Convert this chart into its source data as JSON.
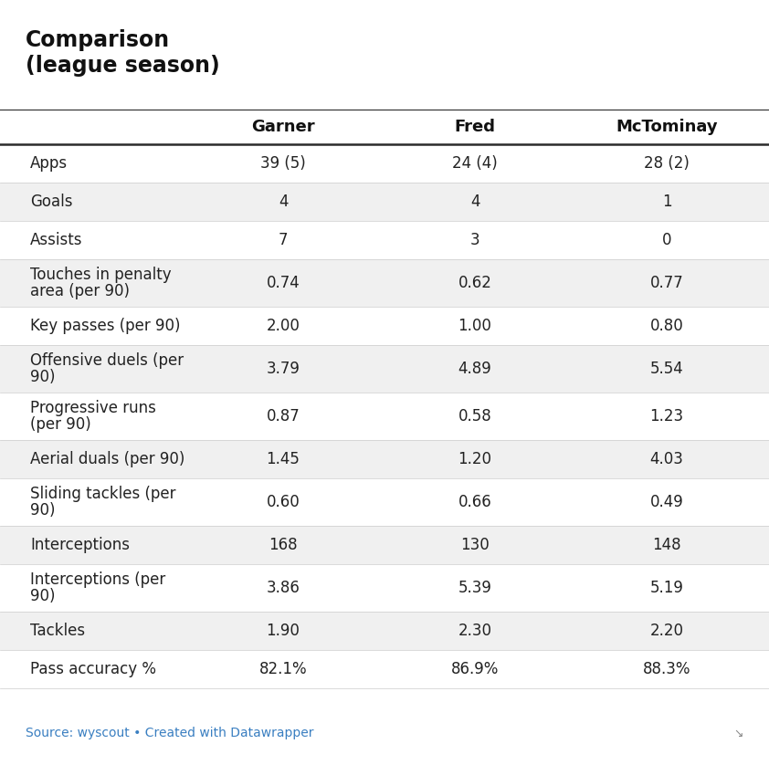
{
  "title_line1": "Comparison",
  "title_line2": "(league season)",
  "col_headers": [
    "Garner",
    "Fred",
    "McTominay"
  ],
  "rows": [
    {
      "label": "Apps",
      "values": [
        "39 (5)",
        "24 (4)",
        "28 (2)"
      ],
      "shaded": false
    },
    {
      "label": "Goals",
      "values": [
        "4",
        "4",
        "1"
      ],
      "shaded": true
    },
    {
      "label": "Assists",
      "values": [
        "7",
        "3",
        "0"
      ],
      "shaded": false
    },
    {
      "label": "Touches in penalty\narea (per 90)",
      "values": [
        "0.74",
        "0.62",
        "0.77"
      ],
      "shaded": true
    },
    {
      "label": "Key passes (per 90)",
      "values": [
        "2.00",
        "1.00",
        "0.80"
      ],
      "shaded": false
    },
    {
      "label": "Offensive duels (per\n90)",
      "values": [
        "3.79",
        "4.89",
        "5.54"
      ],
      "shaded": true
    },
    {
      "label": "Progressive runs\n(per 90)",
      "values": [
        "0.87",
        "0.58",
        "1.23"
      ],
      "shaded": false
    },
    {
      "label": "Aerial duals (per 90)",
      "values": [
        "1.45",
        "1.20",
        "4.03"
      ],
      "shaded": true
    },
    {
      "label": "Sliding tackles (per\n90)",
      "values": [
        "0.60",
        "0.66",
        "0.49"
      ],
      "shaded": false
    },
    {
      "label": "Interceptions",
      "values": [
        "168",
        "130",
        "148"
      ],
      "shaded": true
    },
    {
      "label": "Interceptions (per\n90)",
      "values": [
        "3.86",
        "5.39",
        "5.19"
      ],
      "shaded": false
    },
    {
      "label": "Tackles",
      "values": [
        "1.90",
        "2.30",
        "2.20"
      ],
      "shaded": true
    },
    {
      "label": "Pass accuracy %",
      "values": [
        "82.1%",
        "86.9%",
        "88.3%"
      ],
      "shaded": false
    }
  ],
  "bg_color": "#ffffff",
  "shaded_color": "#f0f0f0",
  "unshaded_color": "#ffffff",
  "text_color": "#222222",
  "source_color": "#888888",
  "source_link_color": "#3a7fc1",
  "header_line_color": "#2b2b2b",
  "col_label_color": "#111111",
  "source_text": "Source: wyscout • Created with ",
  "source_link": "Datawrapper",
  "font_size_title": 17,
  "font_size_header": 13,
  "font_size_row": 12,
  "font_size_source": 10,
  "fig_width": 8.42,
  "fig_height": 8.38,
  "dpi": 100
}
